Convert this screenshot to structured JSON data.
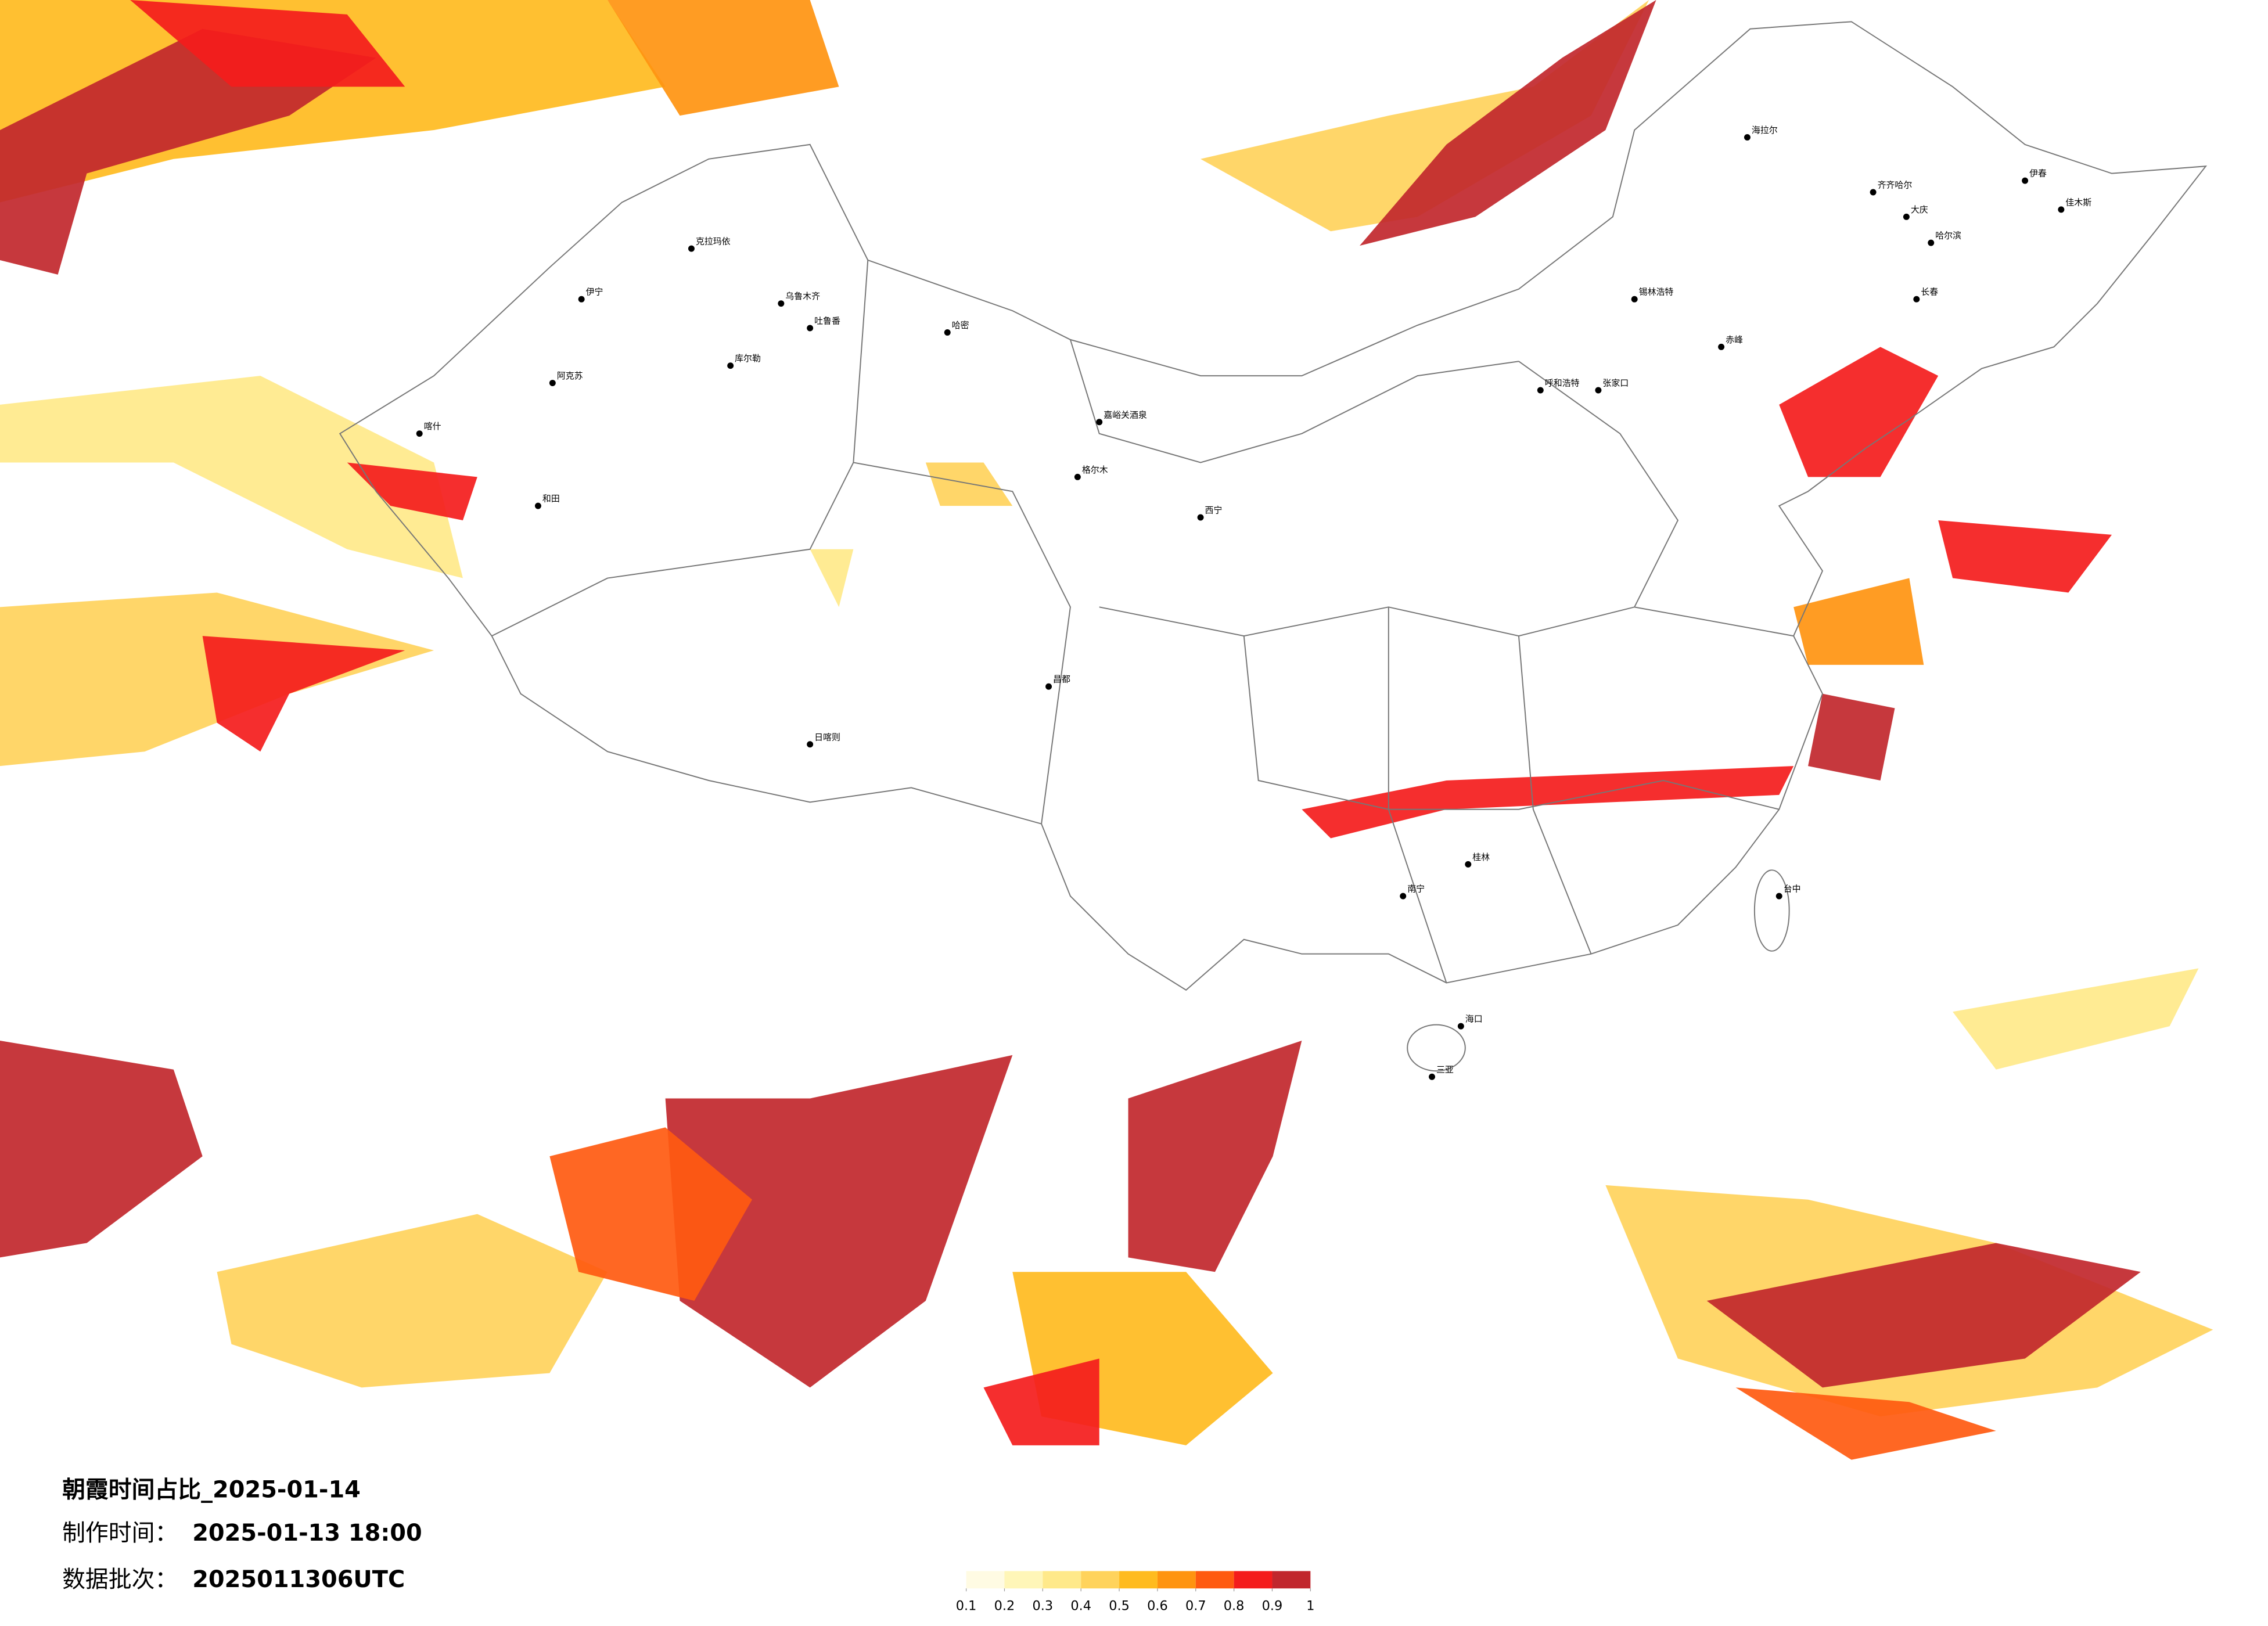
{
  "header": {
    "title": "朝霞时间占比_2025-01-14",
    "made_label": "制作时间：",
    "made_time": "2025-01-13 18:00",
    "batch_label": "数据批次：",
    "batch": "2025011306UTC"
  },
  "legend": {
    "ticks": [
      0.1,
      0.2,
      0.3,
      0.4,
      0.5,
      0.6,
      0.7,
      0.8,
      0.9,
      1
    ],
    "colors": [
      "#fffbe3",
      "#fff6b8",
      "#ffe98a",
      "#ffd35c",
      "#ffbb1f",
      "#ff9410",
      "#ff5a10",
      "#f41c1c",
      "#c1272d"
    ]
  },
  "cities": [
    "海拉尔",
    "齐齐哈尔",
    "大庆",
    "哈尔滨",
    "长春",
    "锡林浩特",
    "呼和浩特",
    "张家口",
    "克拉玛依",
    "乌鲁木齐",
    "伊宁",
    "吐鲁番",
    "库尔勒",
    "哈密",
    "阿克苏",
    "喀什",
    "和田",
    "嘉峪关酒泉",
    "西宁",
    "格尔木",
    "日喀则",
    "昌都",
    "南宁",
    "桂林",
    "海口",
    "三亚",
    "台中",
    "佳木斯",
    "伊春",
    "赤峰"
  ]
}
